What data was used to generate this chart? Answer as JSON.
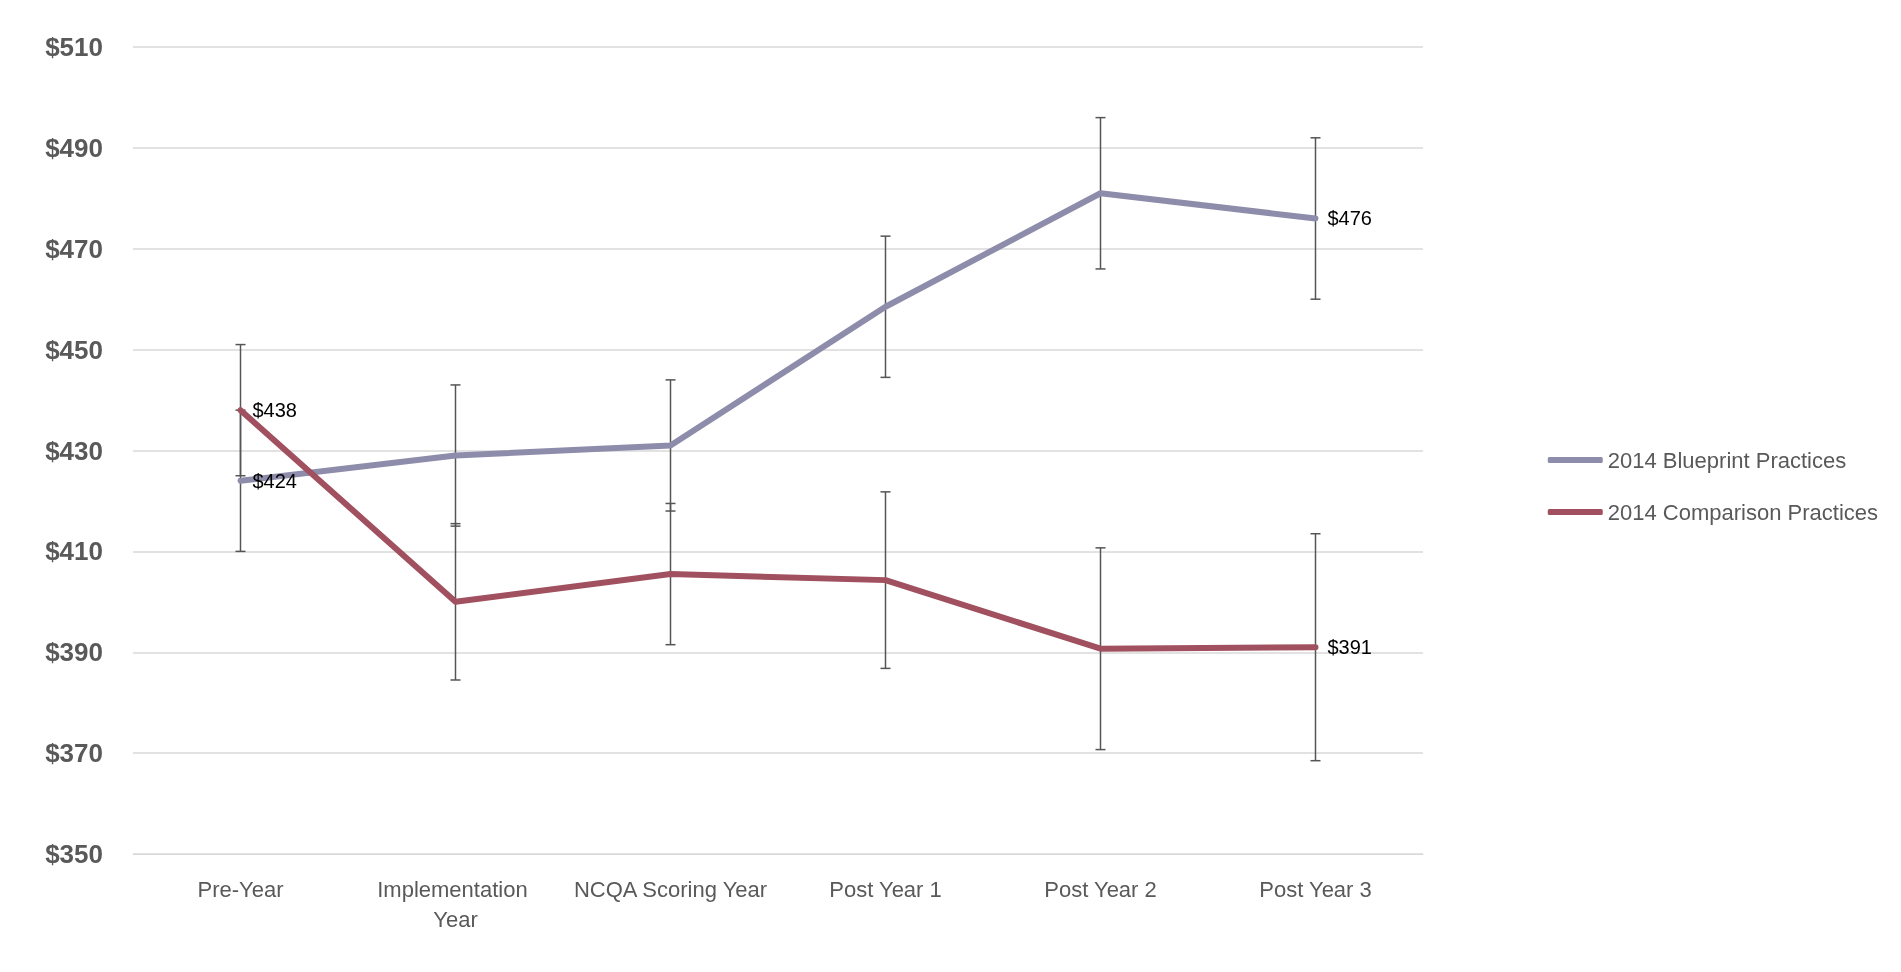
{
  "chart_data": {
    "type": "line",
    "categories": [
      "Pre-Year",
      "Implementation Year",
      "NCQA Scoring Year",
      "Post Year 1",
      "Post Year 2",
      "Post Year 3"
    ],
    "series": [
      {
        "name": "2014 Blueprint Practices",
        "color": "#8e8cab",
        "values": [
          424,
          429,
          431,
          458.5,
          481,
          476
        ],
        "errors": [
          14,
          14,
          13,
          14,
          15,
          16
        ],
        "value_labels": [
          "$424",
          null,
          null,
          null,
          null,
          "$476"
        ]
      },
      {
        "name": "2014 Comparison Practices",
        "color": "#a0505e",
        "values": [
          438,
          400,
          405.5,
          404.3,
          390.7,
          391
        ],
        "errors": [
          13,
          15.5,
          14,
          17.5,
          20,
          22.5
        ],
        "value_labels": [
          "$438",
          null,
          null,
          null,
          null,
          "$391"
        ]
      }
    ],
    "ylim": [
      350,
      510
    ],
    "yticks": [
      {
        "value": 350,
        "label": "$350"
      },
      {
        "value": 370,
        "label": "$370"
      },
      {
        "value": 390,
        "label": "$390"
      },
      {
        "value": 410,
        "label": "$410"
      },
      {
        "value": 430,
        "label": "$430"
      },
      {
        "value": 450,
        "label": "$450"
      },
      {
        "value": 470,
        "label": "$470"
      },
      {
        "value": 490,
        "label": "$490"
      },
      {
        "value": 510,
        "label": "$510"
      }
    ],
    "grid": "y",
    "legend": "right",
    "marker": "none",
    "line_style": "solid"
  }
}
